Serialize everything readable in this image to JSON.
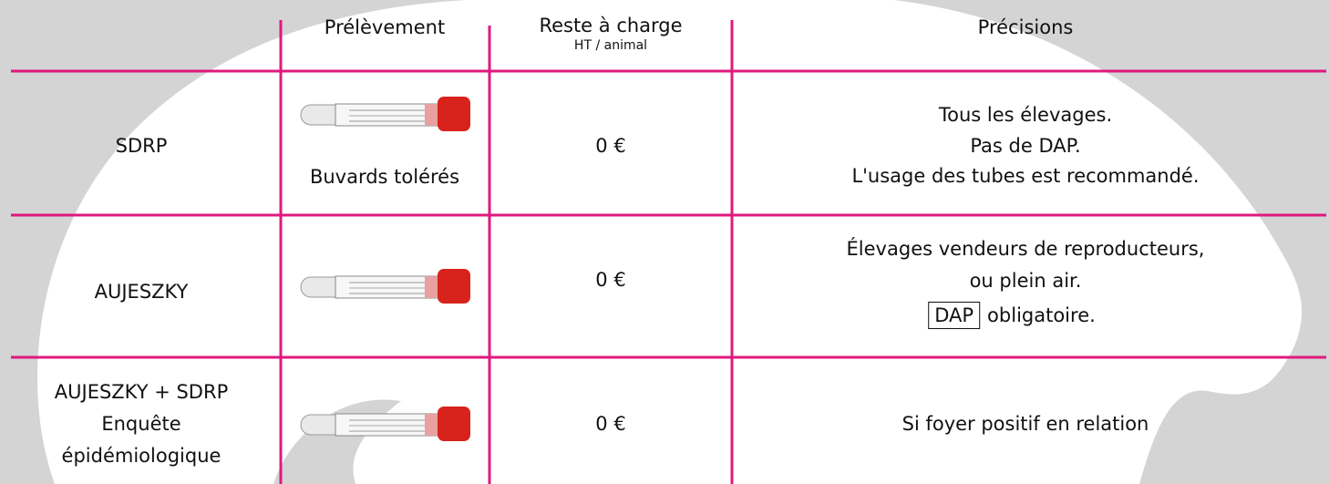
{
  "header": {
    "sample": "Prélèvement",
    "cost": "Reste à charge",
    "cost_note": "HT / animal",
    "details": "Précisions"
  },
  "rows": [
    {
      "name": [
        "SDRP"
      ],
      "sample_note": "Buvards tolérés",
      "cost": "0 €",
      "details": [
        "Tous les élevages.",
        "Pas de DAP.",
        "L'usage des tubes est recommandé."
      ]
    },
    {
      "name": [
        "AUJESZKY"
      ],
      "cost": "0 €",
      "details": [
        "Élevages vendeurs de reproducteurs,",
        "ou plein air."
      ],
      "boxed": "DAP",
      "after_box": "obligatoire."
    },
    {
      "name": [
        "AUJESZKY + SDRP",
        "Enquête",
        "épidémiologique"
      ],
      "cost": "0 €",
      "details": [
        "Si foyer positif en relation"
      ]
    }
  ]
}
